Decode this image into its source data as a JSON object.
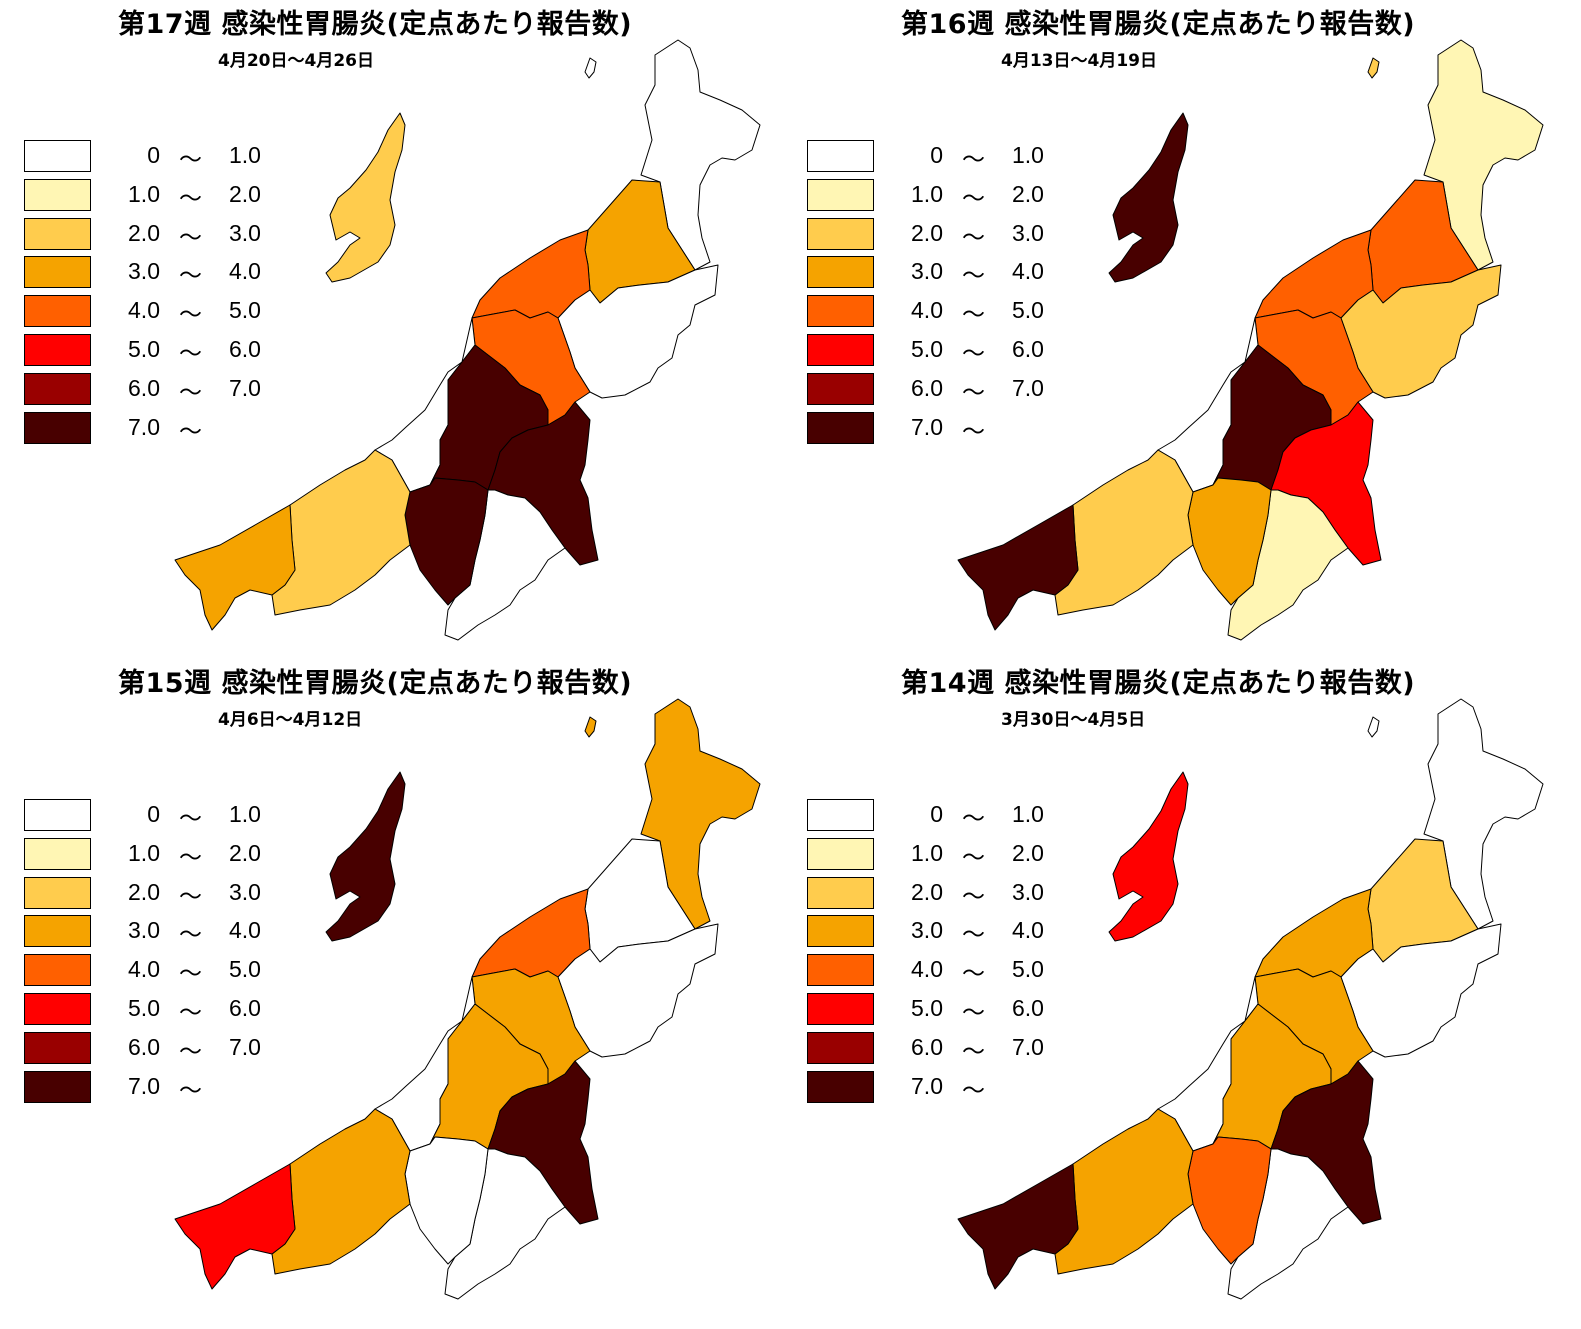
{
  "legend": {
    "bins": [
      {
        "lo": "0",
        "sep": "〜",
        "hi": "1.0",
        "color": "#FFFFFF"
      },
      {
        "lo": "1.0",
        "sep": "〜",
        "hi": "2.0",
        "color": "#FFF6B4"
      },
      {
        "lo": "2.0",
        "sep": "〜",
        "hi": "3.0",
        "color": "#FFCC4D"
      },
      {
        "lo": "3.0",
        "sep": "〜",
        "hi": "4.0",
        "color": "#F5A300"
      },
      {
        "lo": "4.0",
        "sep": "〜",
        "hi": "5.0",
        "color": "#FF6000"
      },
      {
        "lo": "5.0",
        "sep": "〜",
        "hi": "6.0",
        "color": "#FF0000"
      },
      {
        "lo": "6.0",
        "sep": "〜",
        "hi": "7.0",
        "color": "#990000"
      },
      {
        "lo": "7.0",
        "sep": "〜",
        "hi": "",
        "color": "#480000"
      }
    ]
  },
  "panels": [
    {
      "title": "第17週 感染性胃腸炎(定点あたり報告数)",
      "date": "4月20日〜4月26日",
      "fills": {
        "sado": 2,
        "awashima": 0,
        "murakami": 0,
        "shibata": 3,
        "niigata": 4,
        "agano": 0,
        "sanjo": 4,
        "coast": 0,
        "nagaoka": 7,
        "uonuma": 7,
        "minami": 0,
        "tokamachi": 7,
        "joetsu": 2,
        "itoigawa": 3
      }
    },
    {
      "title": "第16週 感染性胃腸炎(定点あたり報告数)",
      "date": "4月13日〜4月19日",
      "fills": {
        "sado": 7,
        "awashima": 2,
        "murakami": 1,
        "shibata": 4,
        "niigata": 4,
        "agano": 2,
        "sanjo": 4,
        "coast": 0,
        "nagaoka": 7,
        "uonuma": 5,
        "minami": 1,
        "tokamachi": 3,
        "joetsu": 2,
        "itoigawa": 7
      }
    },
    {
      "title": "第15週 感染性胃腸炎(定点あたり報告数)",
      "date": "4月6日〜4月12日",
      "fills": {
        "sado": 7,
        "awashima": 3,
        "murakami": 3,
        "shibata": 0,
        "niigata": 4,
        "agano": 0,
        "sanjo": 3,
        "coast": 0,
        "nagaoka": 3,
        "uonuma": 7,
        "minami": 0,
        "tokamachi": 0,
        "joetsu": 3,
        "itoigawa": 5
      }
    },
    {
      "title": "第14週 感染性胃腸炎(定点あたり報告数)",
      "date": "3月30日〜4月5日",
      "fills": {
        "sado": 5,
        "awashima": 0,
        "murakami": 0,
        "shibata": 2,
        "niigata": 3,
        "agano": 0,
        "sanjo": 3,
        "coast": 0,
        "nagaoka": 3,
        "uonuma": 7,
        "minami": 0,
        "tokamachi": 4,
        "joetsu": 3,
        "itoigawa": 7
      }
    }
  ]
}
